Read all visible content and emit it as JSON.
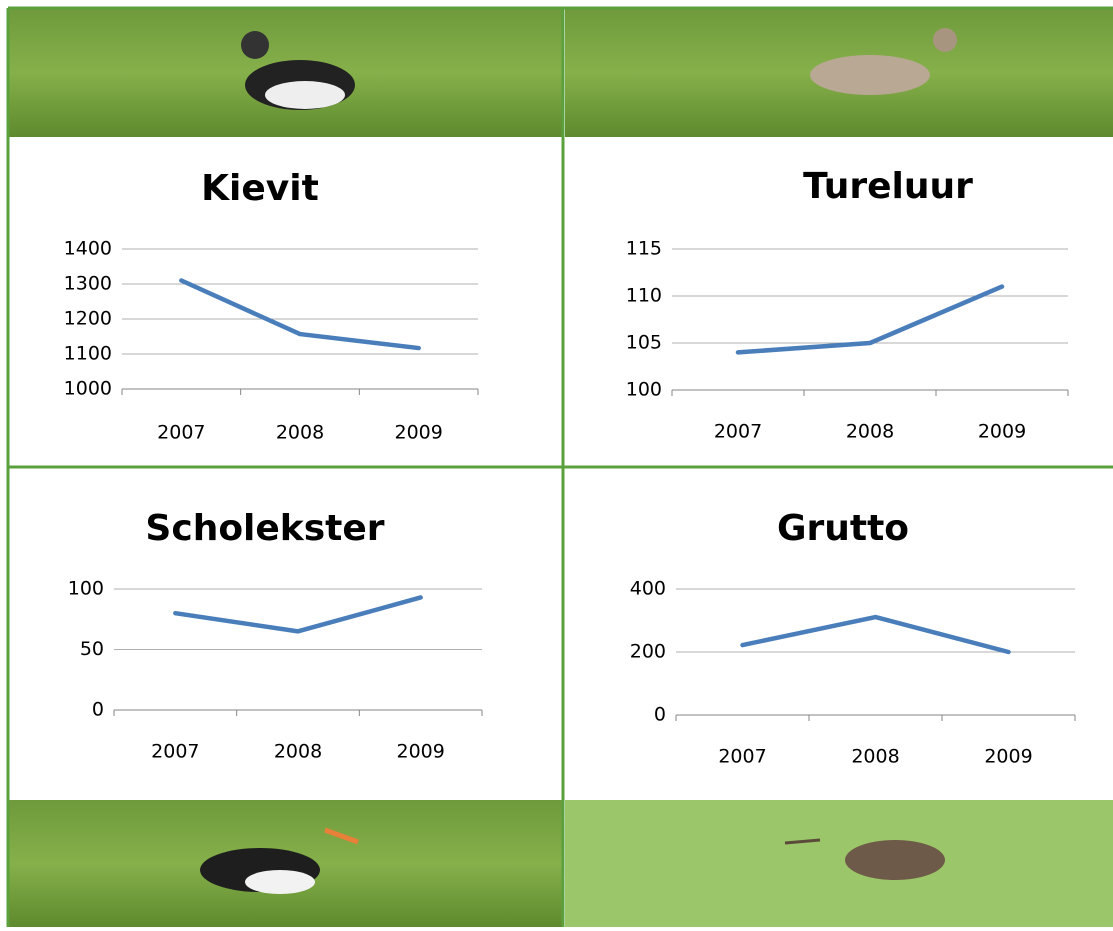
{
  "chart_data": [
    {
      "type": "line",
      "title": "Kievit",
      "categories": [
        "2007",
        "2008",
        "2009"
      ],
      "series": [
        {
          "color": "#4a7ebb",
          "values": [
            1310,
            1157,
            1117
          ]
        }
      ],
      "ylim": [
        1000,
        1400
      ],
      "yticks": [
        1000,
        1100,
        1200,
        1300,
        1400
      ],
      "grid": true
    },
    {
      "type": "line",
      "title": "Tureluur",
      "categories": [
        "2007",
        "2008",
        "2009"
      ],
      "series": [
        {
          "color": "#4a7ebb",
          "values": [
            104,
            105,
            111
          ]
        }
      ],
      "ylim": [
        100,
        115
      ],
      "yticks": [
        100,
        105,
        110,
        115
      ],
      "grid": true
    },
    {
      "type": "line",
      "title": "Scholekster",
      "categories": [
        "2007",
        "2008",
        "2009"
      ],
      "series": [
        {
          "color": "#4a7ebb",
          "values": [
            80,
            65,
            93
          ]
        }
      ],
      "ylim": [
        0,
        100
      ],
      "yticks": [
        0,
        50,
        100
      ],
      "grid": true
    },
    {
      "type": "line",
      "title": "Grutto",
      "categories": [
        "2007",
        "2008",
        "2009"
      ],
      "series": [
        {
          "color": "#4a7ebb",
          "values": [
            222,
            311,
            200
          ]
        }
      ],
      "ylim": [
        0,
        400
      ],
      "yticks": [
        0,
        200,
        400
      ],
      "grid": true
    }
  ]
}
